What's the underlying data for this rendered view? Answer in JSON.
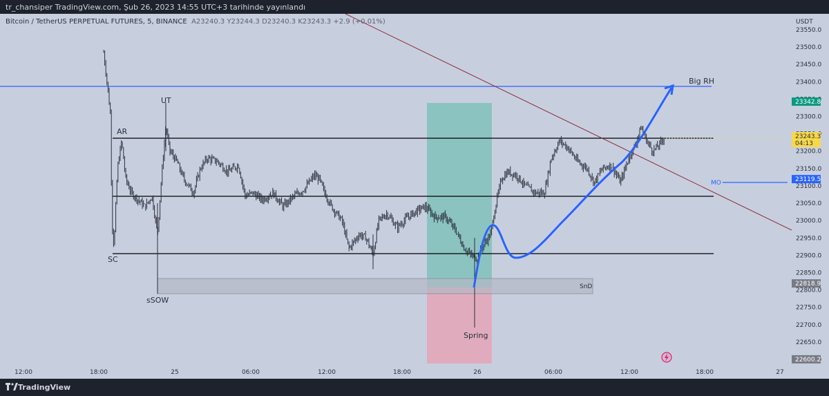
{
  "header": {
    "publish_line": "tr_chansiper TradingView.com, Şub 26, 2023 14:55 UTC+3 tarihinde yayınlandı"
  },
  "symbol": {
    "name": "Bitcoin / TetherUS PERPETUAL FUTURES, 5, BINANCE",
    "ohlc": "A23240.3  Y23244.3  D23240.3  K23243.3  +2.9 (+0.01%)"
  },
  "price_axis": {
    "currency": "USDT",
    "ticks": [
      23550,
      23500,
      23450,
      23400,
      23350,
      23300,
      23250,
      23200,
      23150,
      23100,
      23050,
      23000,
      22950,
      22900,
      22850,
      22800,
      22750,
      22700,
      22650,
      22600
    ],
    "badges": [
      {
        "text": "23342.8",
        "value": 23342.8,
        "color": "#089981"
      },
      {
        "text": "23243.3",
        "sub": "04:13",
        "value": 23243.3,
        "color": "#f7d84a"
      },
      {
        "text": "23119.5",
        "value": 23119.5,
        "color": "#2962ff"
      },
      {
        "text": "22818.9",
        "value": 22818.9,
        "color": "#787b86"
      },
      {
        "text": "22600.2",
        "value": 22600.2,
        "color": "#787b86"
      }
    ]
  },
  "time_axis": {
    "labels": [
      "12:00",
      "18:00",
      "25",
      "06:00",
      "12:00",
      "18:00",
      "26",
      "06:00",
      "12:00",
      "18:00",
      "27"
    ]
  },
  "annotations": {
    "ar": "AR",
    "ut": "UT",
    "sc": "SC",
    "ssow": "sSOW",
    "snd": "SnD",
    "spring": "Spring",
    "big_rh": "Big RH",
    "mo": "MO"
  },
  "levels": {
    "big_rh": 23390,
    "ar_top": 23238,
    "mid": 23076,
    "sc_bottom": 22913,
    "mo": 23119.5
  },
  "colors": {
    "chart_bg": "#c7cfdf",
    "candle": "#2a2e39",
    "blue_line": "#2962ff",
    "trend_line": "#8c2a3a",
    "green_zone": "#5ab9a6",
    "red_zone": "#e8a0b2",
    "snd_zone": "#b4b8c4"
  },
  "footer": {
    "brand": "TradingView"
  },
  "chart_data": {
    "type": "candlestick",
    "title": "",
    "ylim": [
      22600,
      23560
    ],
    "x_labels": [
      "12:00",
      "18:00",
      "25",
      "06:00",
      "12:00",
      "18:00",
      "26",
      "06:00",
      "12:00",
      "18:00",
      "27"
    ],
    "last_price": 23243.3,
    "price_path": [
      {
        "time": "24 19:00",
        "price": 23320
      },
      {
        "time": "24 20:00",
        "price": 22950
      },
      {
        "time": "24 22:00",
        "price": 23000
      },
      {
        "time": "25 01:00",
        "price": 23230
      },
      {
        "time": "25 04:00",
        "price": 23130
      },
      {
        "time": "25 10:00",
        "price": 23080
      },
      {
        "time": "25 14:00",
        "price": 22960
      },
      {
        "time": "25 20:00",
        "price": 23050
      },
      {
        "time": "26 00:00",
        "price": 22900
      },
      {
        "time": "26 02:00",
        "price": 23120
      },
      {
        "time": "26 06:00",
        "price": 23200
      },
      {
        "time": "26 10:00",
        "price": 23140
      },
      {
        "time": "26 14:00",
        "price": 23240
      }
    ]
  }
}
